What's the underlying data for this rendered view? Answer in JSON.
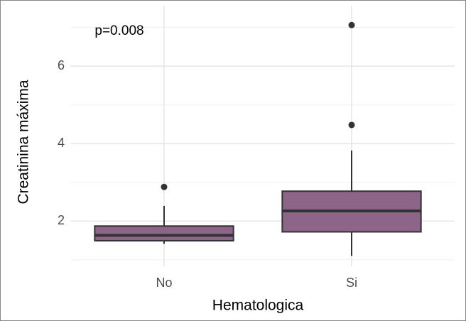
{
  "chart_data": {
    "type": "box",
    "annotation": "p=0.008",
    "x_label": "Hematologica",
    "y_label": "Creatinina máxima",
    "categories": [
      "No",
      "Si"
    ],
    "color": "#8c6589",
    "series": [
      {
        "whisker_low": 1.41,
        "q1": 1.49,
        "median": 1.63,
        "q3": 1.87,
        "whisker_high": 2.39,
        "outliers": [
          2.88
        ]
      },
      {
        "whisker_low": 1.1,
        "q1": 1.72,
        "median": 2.26,
        "q3": 2.77,
        "whisker_high": 3.82,
        "outliers": [
          4.48,
          7.06
        ]
      }
    ],
    "ylim": [
      0.83,
      7.56
    ],
    "yticks": [
      2,
      4,
      6
    ],
    "grid": true
  }
}
